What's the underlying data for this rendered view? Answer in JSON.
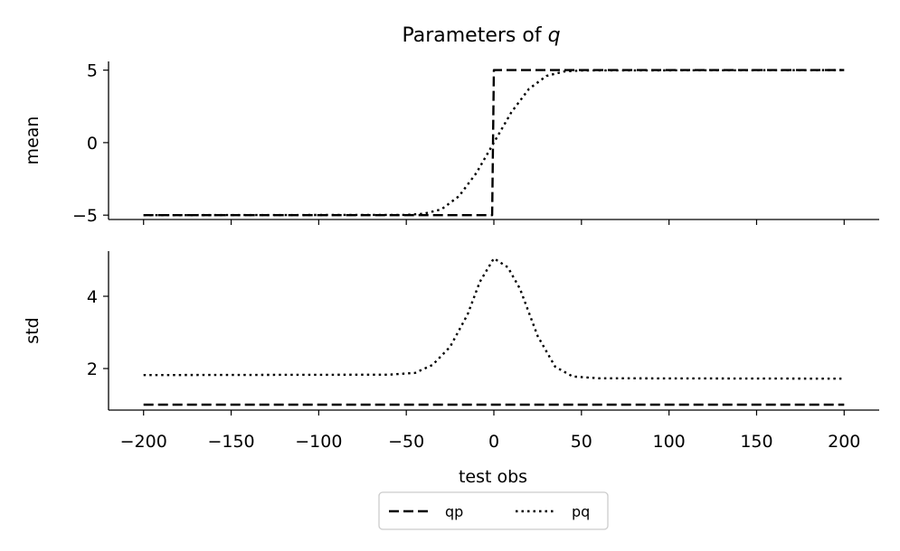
{
  "chart_data": {
    "type": "line",
    "title_text": "Parameters of ",
    "title_math": "q",
    "xlabel": "test obs",
    "x_range": [
      -220,
      220
    ],
    "x_ticks": [
      -200,
      -150,
      -100,
      -50,
      0,
      50,
      100,
      150,
      200
    ],
    "x_tick_labels": [
      "−200",
      "−150",
      "−100",
      "−50",
      "0",
      "50",
      "100",
      "150",
      "200"
    ],
    "legend": {
      "placement": "below center",
      "columns": 2,
      "entries": [
        "qp",
        "pq"
      ]
    },
    "subplots": [
      {
        "ylabel": "mean",
        "ylim": [
          -5.3,
          5.6
        ],
        "y_ticks": [
          5,
          0,
          -5
        ],
        "y_tick_labels": [
          "5",
          "0",
          "−5"
        ],
        "series": [
          {
            "name": "qp",
            "style": "dashed",
            "color": "#000000",
            "x": [
              -200,
              -1,
              0,
              200
            ],
            "y": [
              -5,
              -5,
              5,
              5
            ]
          },
          {
            "name": "pq",
            "style": "dotted",
            "color": "#000000",
            "x": [
              -200,
              -50,
              -40,
              -30,
              -20,
              -10,
              0,
              10,
              20,
              30,
              40,
              50,
              200
            ],
            "y": [
              -5,
              -4.98,
              -4.9,
              -4.6,
              -3.7,
              -2.1,
              0,
              2.1,
              3.7,
              4.6,
              4.9,
              4.98,
              5
            ]
          }
        ]
      },
      {
        "ylabel": "std",
        "ylim": [
          0.85,
          5.25
        ],
        "y_ticks": [
          4,
          2
        ],
        "y_tick_labels": [
          "4",
          "2"
        ],
        "series": [
          {
            "name": "qp",
            "style": "dashed",
            "color": "#000000",
            "x": [
              -200,
              200
            ],
            "y": [
              1.0,
              1.0
            ]
          },
          {
            "name": "pq",
            "style": "dotted",
            "color": "#000000",
            "x": [
              -200,
              -60,
              -45,
              -35,
              -25,
              -15,
              -8,
              0,
              8,
              15,
              25,
              35,
              45,
              60,
              200
            ],
            "y": [
              1.82,
              1.83,
              1.88,
              2.1,
              2.6,
              3.5,
              4.4,
              5.05,
              4.8,
              4.2,
              2.9,
              2.05,
              1.78,
              1.73,
              1.72
            ]
          }
        ]
      }
    ]
  }
}
